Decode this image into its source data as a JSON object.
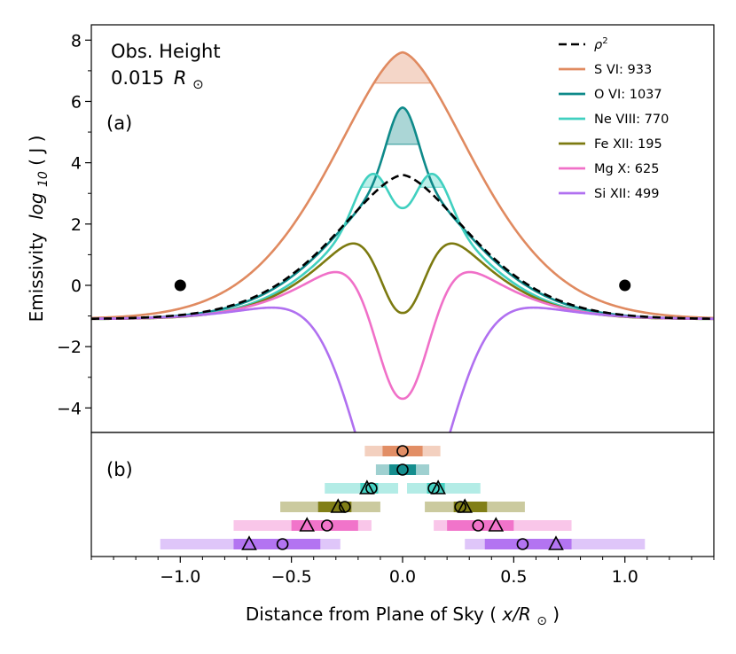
{
  "chart_data": [
    {
      "panel_label": "(a)",
      "type": "line",
      "annotation": {
        "line1": "Obs. Height",
        "line2_value": "0.015",
        "line2_unit": "R",
        "line2_sub": "⊙"
      },
      "xlabel": {
        "text": "Distance from Plane of Sky (",
        "italic": "x/R",
        "sub": "⊙",
        "end": ")"
      },
      "ylabel": {
        "text": "Emissivity",
        "log_prefix": "log",
        "log_sub": "10",
        "log_arg": "( J )"
      },
      "xlim": [
        -1.4,
        1.4
      ],
      "ylim": [
        -4.8,
        8.5
      ],
      "x_ticks": [
        -1.0,
        -0.5,
        0.0,
        0.5,
        1.0
      ],
      "x_tick_labels": [
        "−1.0",
        "−0.5",
        "0.0",
        "0.5",
        "1.0"
      ],
      "y_ticks": [
        -4,
        -2,
        0,
        2,
        4,
        6,
        8
      ],
      "y_tick_labels": [
        "−4",
        "−2",
        "0",
        "2",
        "4",
        "6",
        "8"
      ],
      "series": [
        {
          "name": "S VI: 933",
          "color": "#e08a60",
          "peak": 7.6,
          "center": 0.0,
          "width": 0.48,
          "dip": 0,
          "dip_width": 0.05,
          "band_y": 6.6,
          "band_lo": -0.1,
          "band_hi": 0.1,
          "tail_start": -0.95,
          "tail_end": 1.4
        },
        {
          "name": "O VI: 1037",
          "color": "#0e8a8a",
          "peak": 3.6,
          "center": 0.0,
          "width": 0.44,
          "bump_amp": 2.2,
          "bump_width": 0.07,
          "dip": 0,
          "dip_width": 0.05,
          "band_y": 4.6,
          "band_lo": -0.06,
          "band_hi": 0.06
        },
        {
          "name": "Ne VIII: 770",
          "color": "#40d0c0",
          "peak": 3.3,
          "center": 0.0,
          "width": 0.42,
          "twin_bump_amp": 1.1,
          "twin_bump_pos": 0.15,
          "twin_bump_width": 0.07,
          "dip": 1.0,
          "dip_width": 0.06,
          "band_y": 3.2,
          "band_lo": 0.05,
          "band_hi": 0.35
        },
        {
          "name": "Fe XII: 195",
          "color": "#7c7a10",
          "peak": 2.9,
          "center": 0.0,
          "width": 0.42,
          "dip": 3.8,
          "dip_width": 0.1,
          "band_y": 1.9,
          "band_hi_inner": 0.1,
          "band_hi": 0.55
        },
        {
          "name": "Mg X: 625",
          "color": "#f070c8",
          "peak": 1.9,
          "center": 0.0,
          "width": 0.45,
          "dip": 5.6,
          "dip_width": 0.12,
          "band_y": 0.7,
          "band_hi_inner": 0.15,
          "band_hi": 0.72
        },
        {
          "name": "Si XII: 499",
          "color": "#b070f0",
          "peak": 0.7,
          "center": 0.0,
          "width": 0.5,
          "dip": 9.0,
          "dip_width": 0.2,
          "band_y": -0.5,
          "band_hi_inner": 0.28,
          "band_hi": 1.1
        }
      ],
      "rho2": {
        "name": "ρ²",
        "name_sup": "2",
        "color": "#000000",
        "peak": 3.6,
        "width": 0.45
      },
      "markers": [
        {
          "x": -1.0,
          "y": 0.0
        },
        {
          "x": 1.0,
          "y": 0.0
        }
      ]
    },
    {
      "panel_label": "(b)",
      "type": "range",
      "rows": [
        {
          "name": "S VI: 933",
          "color": "#e08a60",
          "light": [
            -0.17,
            0.17
          ],
          "dark": [
            -0.09,
            0.09
          ],
          "circles": [
            0.0
          ],
          "triangles": []
        },
        {
          "name": "O VI: 1037",
          "color": "#0e8a8a",
          "light": [
            -0.12,
            0.12
          ],
          "dark": [
            -0.06,
            0.06
          ],
          "circles": [
            0.0
          ],
          "triangles": []
        },
        {
          "name": "Ne VIII: 770",
          "color": "#40d0c0",
          "light_left": [
            -0.35,
            -0.02
          ],
          "light_right": [
            0.02,
            0.35
          ],
          "dark_left": [
            -0.19,
            -0.11
          ],
          "dark_right": [
            0.11,
            0.19
          ],
          "circles": [
            -0.14,
            0.14
          ],
          "triangles": [
            -0.16,
            0.16
          ]
        },
        {
          "name": "Fe XII: 195",
          "color": "#7c7a10",
          "light_left": [
            -0.55,
            -0.1
          ],
          "light_right": [
            0.1,
            0.55
          ],
          "dark_left": [
            -0.38,
            -0.23
          ],
          "dark_right": [
            0.23,
            0.38
          ],
          "circles": [
            -0.26,
            0.26
          ],
          "triangles": [
            -0.29,
            0.28
          ]
        },
        {
          "name": "Mg X: 625",
          "color": "#f070c8",
          "light_left": [
            -0.76,
            -0.14
          ],
          "light_right": [
            0.14,
            0.76
          ],
          "dark_left": [
            -0.5,
            -0.2
          ],
          "dark_right": [
            0.2,
            0.5
          ],
          "circles": [
            -0.34,
            0.34
          ],
          "triangles": [
            -0.43,
            0.42
          ]
        },
        {
          "name": "Si XII: 499",
          "color": "#b070f0",
          "light_left": [
            -1.09,
            -0.28
          ],
          "light_right": [
            0.28,
            1.09
          ],
          "dark_left": [
            -0.76,
            -0.37
          ],
          "dark_right": [
            0.37,
            0.76
          ],
          "circles": [
            -0.54,
            0.54
          ],
          "triangles": [
            -0.69,
            0.69
          ]
        }
      ]
    }
  ]
}
